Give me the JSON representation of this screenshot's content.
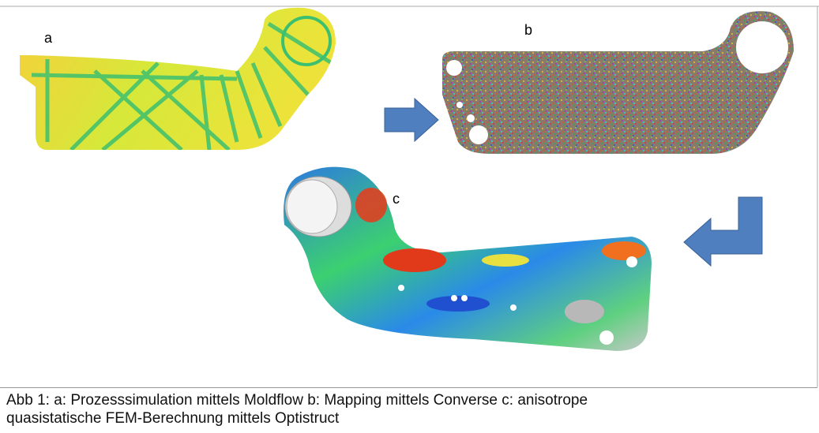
{
  "figure": {
    "labels": [
      "a",
      "b",
      "c"
    ]
  },
  "caption": {
    "lines": [
      "Abb 1: a: Prozesssimulation mittels Moldflow b: Mapping mittels Converse c: anisotrope",
      "quasistatische FEM-Berechnung mittels Optistruct"
    ]
  }
}
